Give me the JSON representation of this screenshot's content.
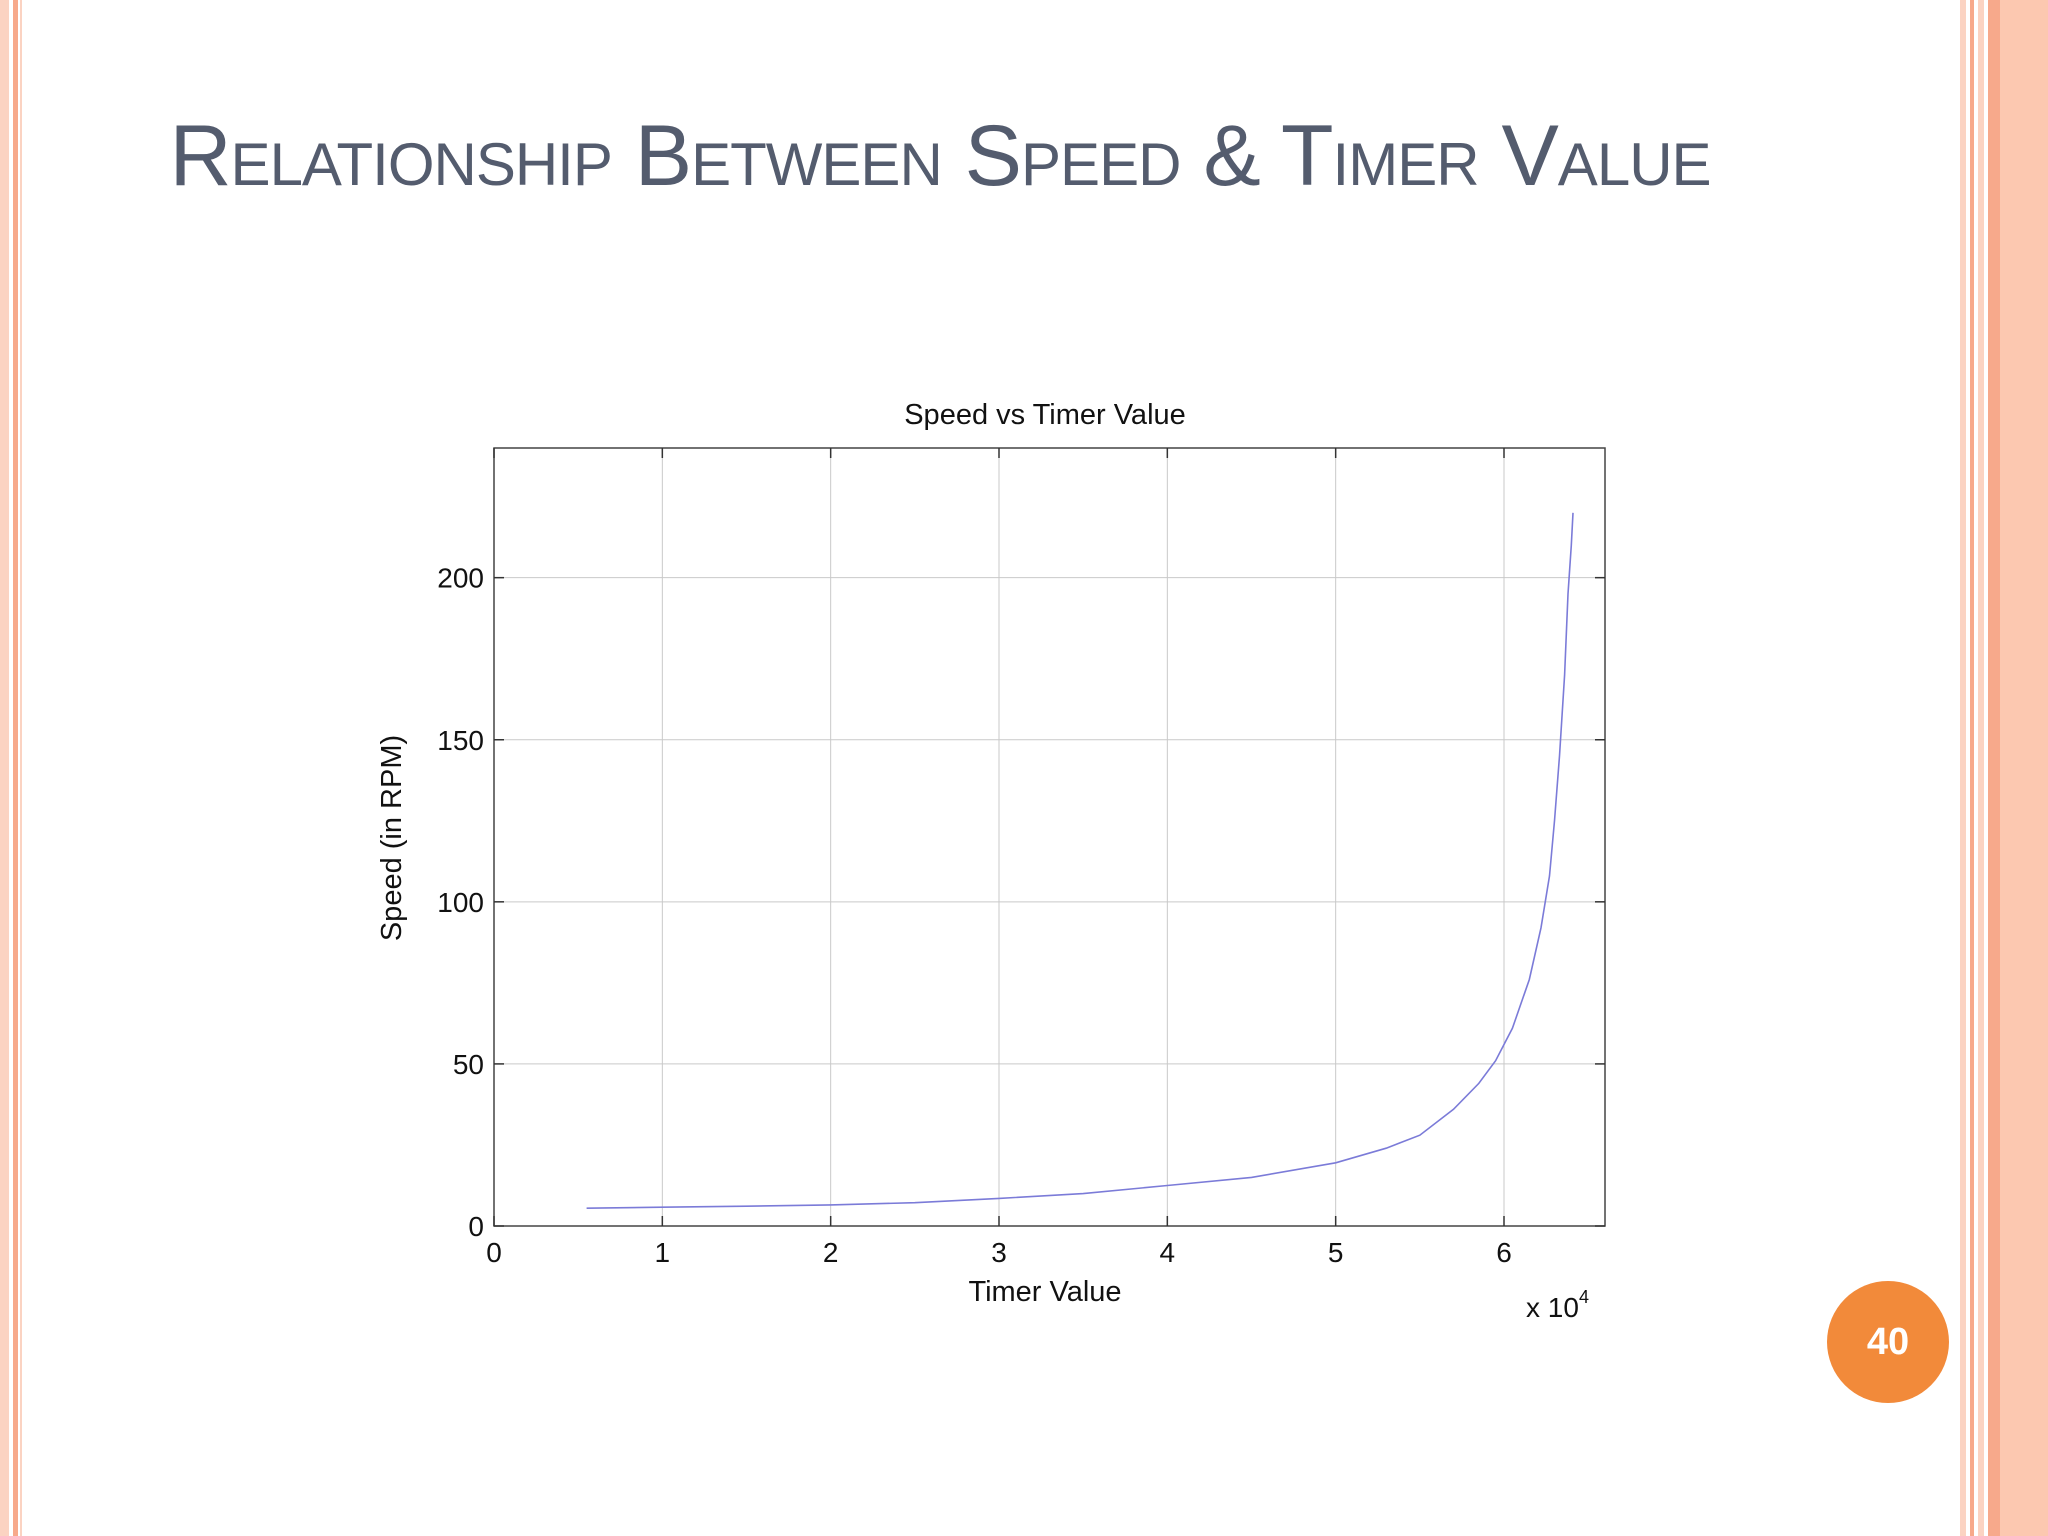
{
  "slide": {
    "title": "Relationship Between Speed & Timer Value",
    "page_number": "40",
    "colors": {
      "title": "#545c6e",
      "accent": "#f28a3a",
      "border_light": "#fbd3c2",
      "border_dark": "#f7a98b"
    }
  },
  "chart_data": {
    "type": "line",
    "title": "Speed vs Timer Value",
    "xlabel": "Timer Value",
    "ylabel": "Speed (in RPM)",
    "x_exponent_label": "x 10",
    "x_exponent_power": "4",
    "xlim": [
      0,
      6.6
    ],
    "ylim": [
      0,
      240
    ],
    "xticks": [
      0,
      1,
      2,
      3,
      4,
      5,
      6
    ],
    "yticks": [
      0,
      50,
      100,
      150,
      200
    ],
    "grid": true,
    "line_color": "#7b7bd8",
    "series": [
      {
        "x": [
          0.55,
          1.0,
          1.5,
          2.0,
          2.5,
          3.0,
          3.5,
          4.0,
          4.5,
          5.0,
          5.3,
          5.5,
          5.7,
          5.85,
          5.95,
          6.05,
          6.15,
          6.22,
          6.27,
          6.3,
          6.33,
          6.36,
          6.38,
          6.4,
          6.41
        ],
        "y": [
          5.5,
          5.8,
          6.1,
          6.5,
          7.2,
          8.5,
          10,
          12.5,
          15,
          19.5,
          24,
          28,
          36,
          44,
          51,
          61,
          76,
          92,
          108,
          125,
          145,
          170,
          195,
          210,
          220
        ]
      }
    ]
  }
}
